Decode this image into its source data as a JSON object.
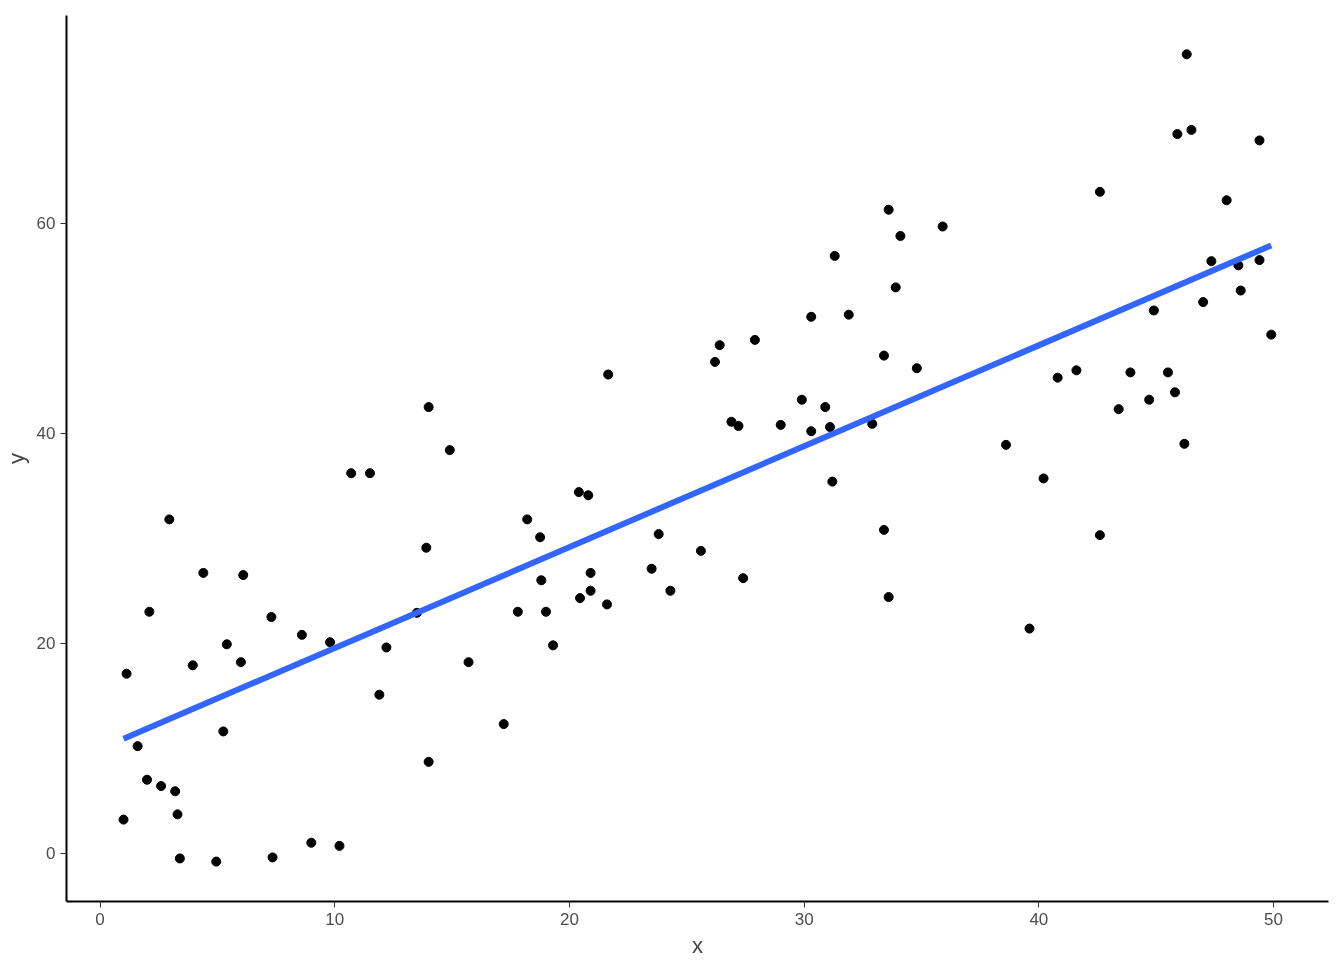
{
  "chart_data": {
    "type": "scatter",
    "xlabel": "x",
    "ylabel": "y",
    "xlim": [
      -1.43,
      52.34
    ],
    "ylim": [
      -4.6,
      79.8
    ],
    "xticks": [
      0,
      10,
      20,
      30,
      40,
      50
    ],
    "yticks": [
      0,
      20,
      40,
      60
    ],
    "grid": false,
    "series": [
      {
        "color": "#000000",
        "marker": "circle",
        "x": [
          1.0,
          1.13,
          1.6,
          2.0,
          2.1,
          2.6,
          2.95,
          3.2,
          3.3,
          3.4,
          3.95,
          4.4,
          4.95,
          5.25,
          5.4,
          6.0,
          6.1,
          7.3,
          7.35,
          8.6,
          9.0,
          9.8,
          10.2,
          10.7,
          11.5,
          11.9,
          12.2,
          13.5,
          13.9,
          14.0,
          14.0,
          14.9,
          15.7,
          17.2,
          17.8,
          18.2,
          18.75,
          18.8,
          19.0,
          19.3,
          20.4,
          20.45,
          20.8,
          20.9,
          20.9,
          21.6,
          21.65,
          23.5,
          23.8,
          24.3,
          25.6,
          26.2,
          26.4,
          26.9,
          27.2,
          27.4,
          27.9,
          29.0,
          29.9,
          30.3,
          30.3,
          30.9,
          31.1,
          31.2,
          31.3,
          31.9,
          32.9,
          33.4,
          33.4,
          33.6,
          33.6,
          33.9,
          34.1,
          34.8,
          35.9,
          38.6,
          39.6,
          40.2,
          40.8,
          41.6,
          42.6,
          42.6,
          43.4,
          43.9,
          44.7,
          44.9,
          45.5,
          45.8,
          45.9,
          46.2,
          46.3,
          46.5,
          47.0,
          47.35,
          48.0,
          48.5,
          48.6,
          49.4,
          49.4,
          49.9
        ],
        "values": [
          3.2,
          17.1,
          10.2,
          7.0,
          23.0,
          6.4,
          31.8,
          5.9,
          3.7,
          -0.5,
          17.9,
          26.7,
          -0.8,
          11.6,
          19.9,
          18.2,
          26.5,
          22.5,
          -0.4,
          20.8,
          1.0,
          20.1,
          0.7,
          36.2,
          36.2,
          15.1,
          19.6,
          22.9,
          29.1,
          42.5,
          8.7,
          38.4,
          18.2,
          12.3,
          23.0,
          31.8,
          30.1,
          26.0,
          23.0,
          19.8,
          34.4,
          24.3,
          34.1,
          26.7,
          25.0,
          23.7,
          45.6,
          27.1,
          30.4,
          25.0,
          28.8,
          46.8,
          48.4,
          41.1,
          40.7,
          26.2,
          48.9,
          40.8,
          43.2,
          51.1,
          40.2,
          42.5,
          40.6,
          35.4,
          56.9,
          51.3,
          40.9,
          47.4,
          30.8,
          61.3,
          24.4,
          53.9,
          58.8,
          46.2,
          59.7,
          38.9,
          21.4,
          35.7,
          45.3,
          46.0,
          63.0,
          30.3,
          42.3,
          45.8,
          43.2,
          51.7,
          45.8,
          43.9,
          68.5,
          39.0,
          76.1,
          68.9,
          52.5,
          56.4,
          62.2,
          56.0,
          53.6,
          67.9,
          56.5,
          49.4
        ]
      },
      {
        "type": "line",
        "color": "#3366ff",
        "marker": "none",
        "line_style": "solid",
        "x": [
          1.0,
          49.9
        ],
        "values": [
          10.9,
          57.9
        ]
      }
    ]
  }
}
